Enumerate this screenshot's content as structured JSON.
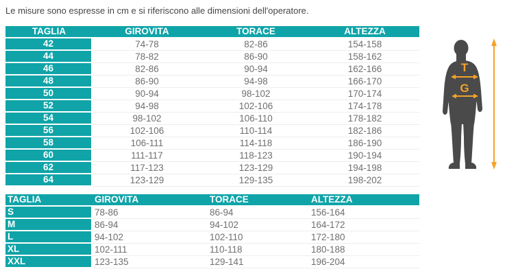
{
  "note": "Le misure sono espresse in cm e si riferiscono alle dimensioni dell'operatore.",
  "colors": {
    "teal": "#10a4a8",
    "orange": "#f3a229",
    "silhouette_gray": "#4a4a4a",
    "data_text": "#6f6f6f",
    "note_text": "#454545"
  },
  "table_numeric": {
    "headers": [
      "TAGLIA",
      "GIROVITA",
      "TORACE",
      "ALTEZZA"
    ],
    "rows": [
      [
        "42",
        "74-78",
        "82-86",
        "154-158"
      ],
      [
        "44",
        "78-82",
        "86-90",
        "158-162"
      ],
      [
        "46",
        "82-86",
        "90-94",
        "162-166"
      ],
      [
        "48",
        "86-90",
        "94-98",
        "166-170"
      ],
      [
        "50",
        "90-94",
        "98-102",
        "170-174"
      ],
      [
        "52",
        "94-98",
        "102-106",
        "174-178"
      ],
      [
        "54",
        "98-102",
        "106-110",
        "178-182"
      ],
      [
        "56",
        "102-106",
        "110-114",
        "182-186"
      ],
      [
        "58",
        "106-111",
        "114-118",
        "186-190"
      ],
      [
        "60",
        "111-117",
        "118-123",
        "190-194"
      ],
      [
        "62",
        "117-123",
        "123-129",
        "194-198"
      ],
      [
        "64",
        "123-129",
        "129-135",
        "198-202"
      ]
    ]
  },
  "table_letter": {
    "headers": [
      "TAGLIA",
      "GIROVITA",
      "TORACE",
      "ALTEZZA"
    ],
    "rows": [
      [
        "S",
        "78-86",
        "86-94",
        "156-164"
      ],
      [
        "M",
        "86-94",
        "94-102",
        "164-172"
      ],
      [
        "L",
        "94-102",
        "102-110",
        "172-180"
      ],
      [
        "XL",
        "102-111",
        "110-118",
        "180-188"
      ],
      [
        "XXL",
        "123-135",
        "129-141",
        "196-204"
      ]
    ]
  },
  "figure": {
    "torace_label": "T",
    "girovita_label": "G"
  }
}
